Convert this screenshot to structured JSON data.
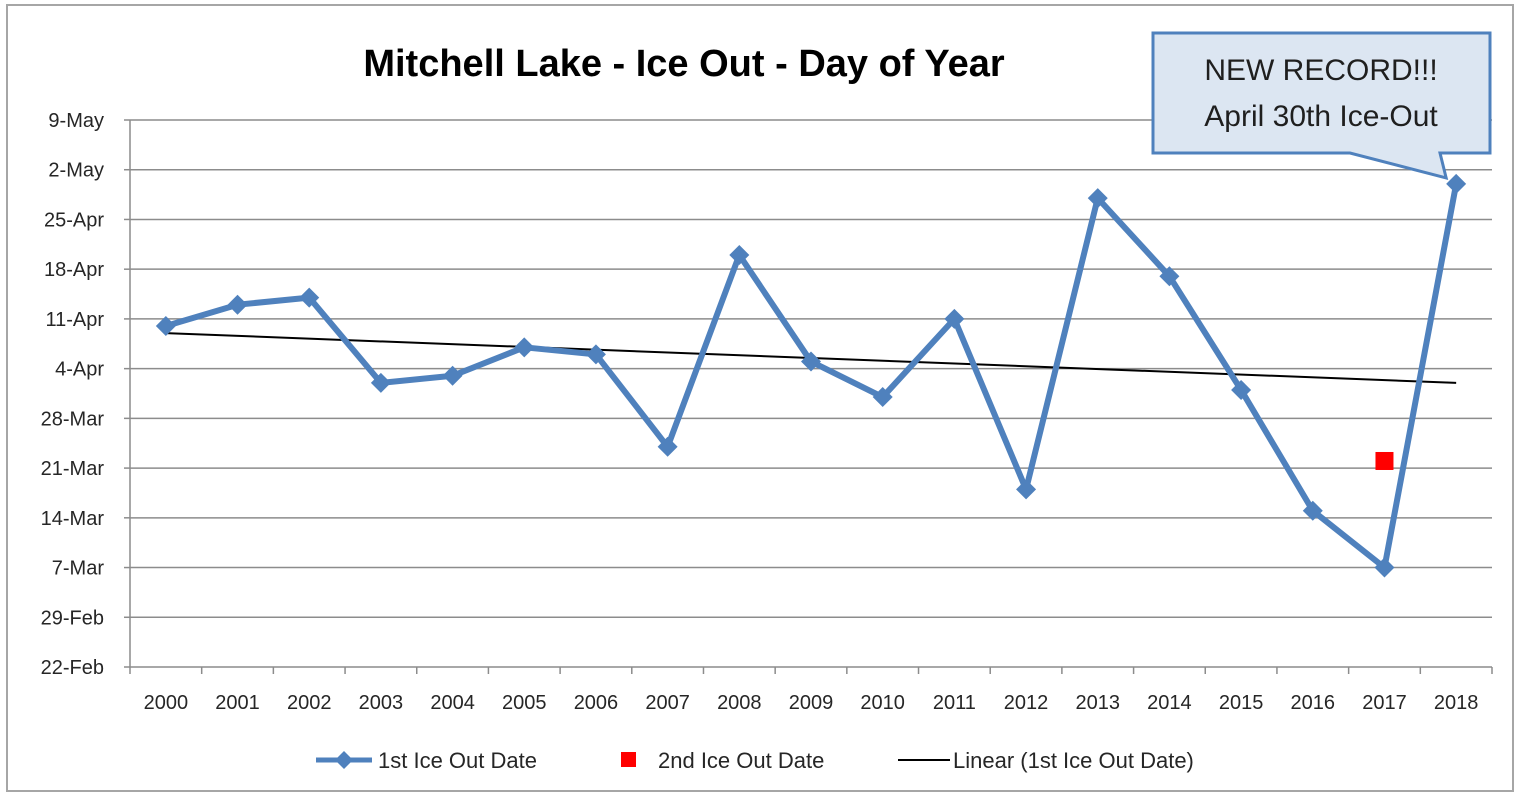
{
  "chart_data": {
    "type": "line",
    "title": "Mitchell Lake - Ice Out - Day of Year",
    "xlabel": "",
    "ylabel": "",
    "categories": [
      "2000",
      "2001",
      "2002",
      "2003",
      "2004",
      "2005",
      "2006",
      "2007",
      "2008",
      "2009",
      "2010",
      "2011",
      "2012",
      "2013",
      "2014",
      "2015",
      "2016",
      "2017",
      "2018"
    ],
    "y_ticks": [
      "22-Feb",
      "29-Feb",
      "7-Mar",
      "14-Mar",
      "21-Mar",
      "28-Mar",
      "4-Apr",
      "11-Apr",
      "18-Apr",
      "25-Apr",
      "2-May",
      "9-May"
    ],
    "ylim": [
      "22-Feb",
      "9-May"
    ],
    "series": [
      {
        "name": "1st Ice Out Date",
        "color": "#4f81bd",
        "marker": "diamond",
        "values": [
          "10-Apr",
          "13-Apr",
          "14-Apr",
          "2-Apr",
          "3-Apr",
          "7-Apr",
          "6-Apr",
          "24-Mar",
          "20-Apr",
          "5-Apr",
          "31-Mar",
          "11-Apr",
          "18-Mar",
          "28-Apr",
          "17-Apr",
          "1-Apr",
          "15-Mar",
          "7-Mar",
          "30-Apr"
        ]
      },
      {
        "name": "2nd Ice Out Date",
        "color": "#ff0000",
        "marker": "square",
        "points": [
          {
            "x": "2017",
            "y": "22-Mar"
          }
        ]
      },
      {
        "name": "Linear (1st Ice Out Date)",
        "color": "#000000",
        "type": "trendline",
        "values_endpoints": [
          {
            "x": "2000",
            "y": "9-Apr"
          },
          {
            "x": "2018",
            "y": "2-Apr"
          }
        ]
      }
    ],
    "grid": true,
    "legend": "bottom",
    "annotation": {
      "lines": [
        "NEW RECORD!!!",
        "April 30th Ice-Out"
      ],
      "points_to": {
        "x": "2018",
        "y": "30-Apr"
      },
      "fill": "#dce6f2",
      "border": "#4f81bd"
    }
  }
}
